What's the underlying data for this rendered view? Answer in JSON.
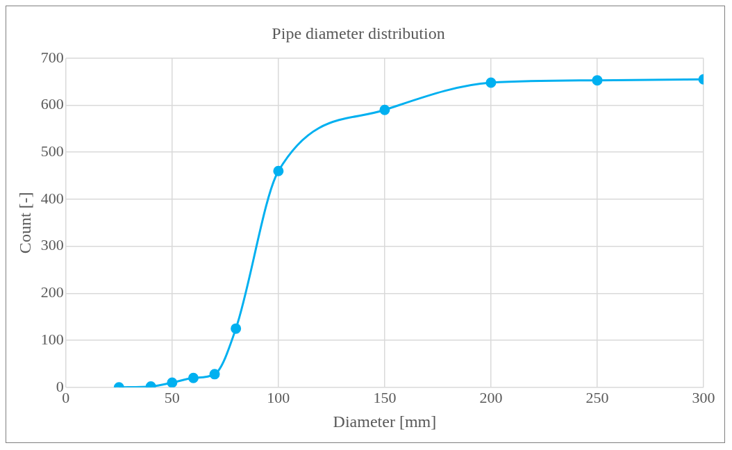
{
  "chart_data": {
    "type": "line",
    "title": "Pipe diameter distribution",
    "xlabel": "Diameter [mm]",
    "ylabel": "Count [-]",
    "x": [
      25,
      40,
      50,
      60,
      70,
      80,
      100,
      150,
      200,
      250,
      300
    ],
    "series": [
      {
        "color": "#00b0f0",
        "values": [
          0,
          2,
          10,
          20,
          28,
          125,
          460,
          590,
          648,
          653,
          655
        ]
      }
    ],
    "xlim": [
      0,
      300
    ],
    "xticks": [
      0,
      50,
      100,
      150,
      200,
      250,
      300
    ],
    "ylim": [
      0,
      700
    ],
    "yticks": [
      0,
      100,
      200,
      300,
      400,
      500,
      600,
      700
    ],
    "grid": true,
    "legend": false,
    "marker": "circle",
    "line_style": "solid"
  }
}
